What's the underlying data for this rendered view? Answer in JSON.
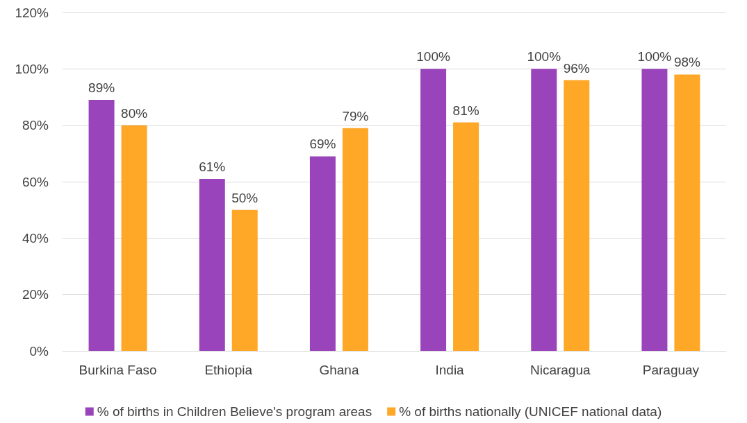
{
  "chart_data": {
    "type": "bar",
    "categories": [
      "Burkina Faso",
      "Ethiopia",
      "Ghana",
      "India",
      "Nicaragua",
      "Paraguay"
    ],
    "series": [
      {
        "name": "% of births in Children Believe's program areas",
        "color": "#9944bb",
        "values": [
          89,
          61,
          69,
          100,
          100,
          100
        ],
        "value_labels": [
          "89%",
          "61%",
          "69%",
          "100%",
          "100%",
          "100%"
        ]
      },
      {
        "name": "% of births nationally (UNICEF national data)",
        "color": "#ffa726",
        "values": [
          80,
          50,
          79,
          81,
          96,
          98
        ],
        "value_labels": [
          "80%",
          "50%",
          "79%",
          "81%",
          "96%",
          "98%"
        ]
      }
    ],
    "ylim": [
      0,
      120
    ],
    "yticks": [
      {
        "value": 0,
        "label": "0%"
      },
      {
        "value": 20,
        "label": "20%"
      },
      {
        "value": 40,
        "label": "40%"
      },
      {
        "value": 60,
        "label": "60%"
      },
      {
        "value": 80,
        "label": "80%"
      },
      {
        "value": 100,
        "label": "100%"
      },
      {
        "value": 120,
        "label": "120%"
      }
    ],
    "grid": "y",
    "legend": "bottom"
  }
}
